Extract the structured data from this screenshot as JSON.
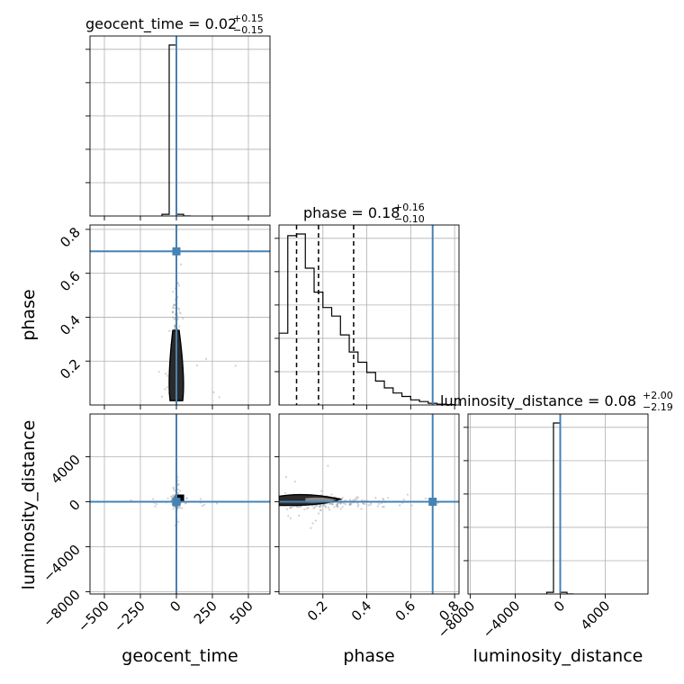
{
  "chart_data": {
    "type": "corner",
    "parameters": [
      "geocent_time",
      "phase",
      "luminosity_distance"
    ],
    "truths": [
      0,
      0.7,
      0
    ],
    "colors": {
      "truth": "#4682b4",
      "hist": "#000000",
      "grid": "#b0b0b0",
      "scatter": "#9a9a9a",
      "contour_fill": "#2b2b2b"
    },
    "axes": {
      "geocent_time": {
        "range": [
          -600,
          650
        ],
        "ticks": [
          -500,
          -250,
          0,
          250,
          500
        ],
        "tick_labels": [
          "−500",
          "−250",
          "0",
          "250",
          "500"
        ],
        "label": "geocent_time"
      },
      "phase": {
        "range": [
          0,
          0.82
        ],
        "ticks": [
          0.2,
          0.4,
          0.6,
          0.8
        ],
        "tick_labels": [
          "0.2",
          "0.4",
          "0.6",
          "0.8"
        ],
        "label": "phase"
      },
      "luminosity_distance": {
        "range": [
          -8200,
          7800
        ],
        "ticks": [
          -8000,
          -4000,
          0,
          4000
        ],
        "tick_labels": [
          "−8000",
          "−4000",
          "0",
          "4000"
        ],
        "label": "luminosity_distance"
      }
    },
    "titles": [
      {
        "param": "geocent_time",
        "main": "geocent_time = 0.02",
        "sup": "+0.15",
        "sub": "−0.15"
      },
      {
        "param": "phase",
        "main": "phase = 0.18",
        "sup": "+0.16",
        "sub": "−0.10"
      },
      {
        "param": "luminosity_distance",
        "main": "luminosity_distance = 0.08",
        "sup": "+2.00",
        "sub": "−2.19"
      }
    ],
    "quantile_lines": {
      "geocent_time": [
        -0.13,
        0.02,
        0.17
      ],
      "phase": [
        0.08,
        0.18,
        0.34
      ],
      "luminosity_distance": [
        -2.11,
        0.08,
        2.08
      ]
    },
    "histograms": {
      "geocent_time": {
        "bin_edges": [
          -100,
          -50,
          0,
          50,
          100
        ],
        "counts": [
          0.01,
          1.0,
          0.01,
          0.0
        ]
      },
      "phase": {
        "bin_edges": [
          0.0,
          0.04,
          0.08,
          0.12,
          0.16,
          0.2,
          0.24,
          0.28,
          0.32,
          0.36,
          0.4,
          0.44,
          0.48,
          0.52,
          0.56,
          0.6,
          0.64,
          0.68,
          0.72,
          0.76,
          0.8
        ],
        "counts": [
          0.42,
          0.99,
          1.0,
          0.8,
          0.66,
          0.57,
          0.52,
          0.41,
          0.31,
          0.25,
          0.19,
          0.14,
          0.1,
          0.07,
          0.05,
          0.03,
          0.02,
          0.01,
          0.005,
          0.003
        ]
      },
      "luminosity_distance": {
        "bin_edges": [
          -1200,
          -600,
          0,
          600,
          1200
        ],
        "counts": [
          0.01,
          1.0,
          0.01,
          0.0
        ]
      }
    }
  }
}
